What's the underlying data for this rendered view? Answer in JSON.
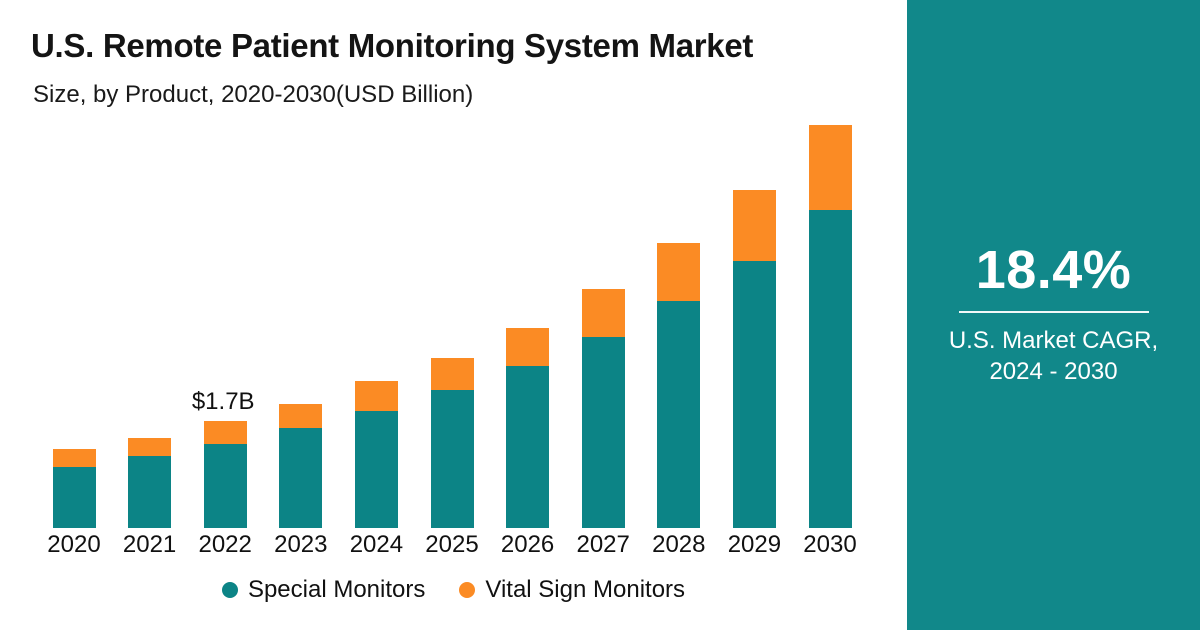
{
  "header": {
    "title": "U.S. Remote Patient Monitoring System Market",
    "subtitle": "Size, by Product, 2020-2030(USD Billion)"
  },
  "chart_data": {
    "type": "bar",
    "stacked": true,
    "title": "U.S. Remote Patient Monitoring System Market",
    "subtitle": "Size, by Product, 2020-2030(USD Billion)",
    "unit": "USD Billion",
    "categories": [
      "2020",
      "2021",
      "2022",
      "2023",
      "2024",
      "2025",
      "2026",
      "2027",
      "2028",
      "2029",
      "2030"
    ],
    "series": [
      {
        "name": "Special Monitors",
        "color": "#0C8486",
        "values": [
          0.97,
          1.14,
          1.33,
          1.59,
          1.86,
          2.19,
          2.57,
          3.03,
          3.6,
          4.25,
          5.06
        ]
      },
      {
        "name": "Vital Sign Monitors",
        "color": "#FB8B24",
        "values": [
          0.28,
          0.29,
          0.37,
          0.38,
          0.48,
          0.51,
          0.6,
          0.76,
          0.92,
          1.13,
          1.35
        ]
      }
    ],
    "annotations": [
      {
        "category": "2022",
        "text": "$1.7B"
      }
    ],
    "ylim": [
      0,
      6.5
    ],
    "y_axis_visible": false,
    "gridlines": false,
    "legend_position": "bottom"
  },
  "sidebar": {
    "cagr_value": "18.4%",
    "caption_line1": "U.S. Market CAGR,",
    "caption_line2": "2024 - 2030",
    "background_color": "#11888A"
  },
  "colors": {
    "special_monitors": "#0C8486",
    "vital_sign_monitors": "#FB8B24",
    "panel_teal": "#11888A",
    "text": "#141414"
  }
}
